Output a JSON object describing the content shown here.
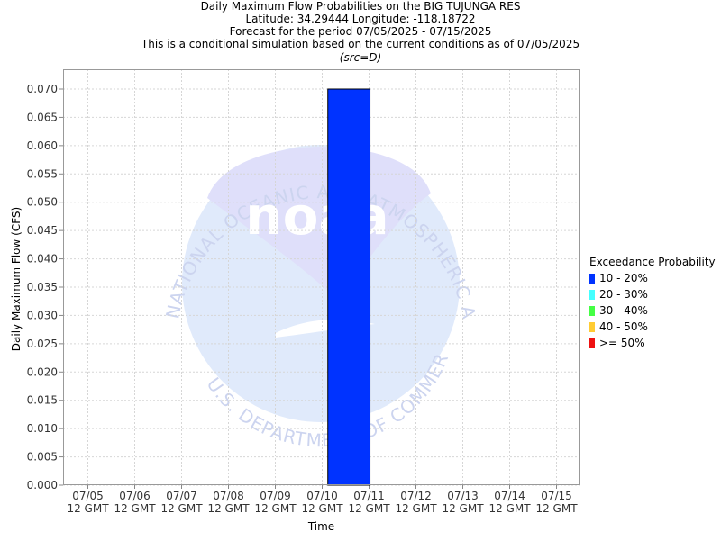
{
  "titles": {
    "line1": "Daily Maximum Flow Probabilities on the BIG TUJUNGA RES",
    "line2": "Latitude: 34.29444 Longitude: -118.18722",
    "line3": "Forecast for the period 07/05/2025 - 07/15/2025",
    "line4": "This is a conditional simulation based on the current conditions as of 07/05/2025",
    "line5": "(src=D)"
  },
  "watermark": {
    "text_top": "NATIONAL OCEANIC AND ATMOSPHERIC ADMINISTRATION",
    "text_bottom": "U.S. DEPARTMENT OF COMMERCE",
    "logo": "noaa"
  },
  "chart_data": {
    "type": "bar",
    "title": "Daily Maximum Flow Probabilities on the BIG TUJUNGA RES",
    "xlabel": "Time",
    "ylabel": "Daily Maximum Flow (CFS)",
    "ylim": [
      0,
      0.0735
    ],
    "yticks": [
      "0.000",
      "0.005",
      "0.010",
      "0.015",
      "0.020",
      "0.025",
      "0.030",
      "0.035",
      "0.040",
      "0.045",
      "0.050",
      "0.055",
      "0.060",
      "0.065",
      "0.070"
    ],
    "categories": [
      "07/05",
      "07/06",
      "07/07",
      "07/08",
      "07/09",
      "07/10",
      "07/11",
      "07/12",
      "07/13",
      "07/14",
      "07/15"
    ],
    "category_suffix": "12 GMT",
    "grid": true,
    "legend_title": "Exceedance Probability",
    "legend_position": "right",
    "legend": [
      {
        "label": "10 - 20%",
        "color": "#0033ff"
      },
      {
        "label": "20 - 30%",
        "color": "#44ffff"
      },
      {
        "label": "30 - 40%",
        "color": "#44ff44"
      },
      {
        "label": "40 - 50%",
        "color": "#ffcc33"
      },
      {
        "label": ">= 50%",
        "color": "#ee1111"
      }
    ],
    "bars": [
      {
        "series": "10 - 20%",
        "x_start": "07/10",
        "x_end": "07/11",
        "x_start_offset": 0.12,
        "x_end_offset": 1.02,
        "y_bottom": 0.0,
        "y_top": 0.07,
        "color": "#0033ff"
      }
    ]
  }
}
